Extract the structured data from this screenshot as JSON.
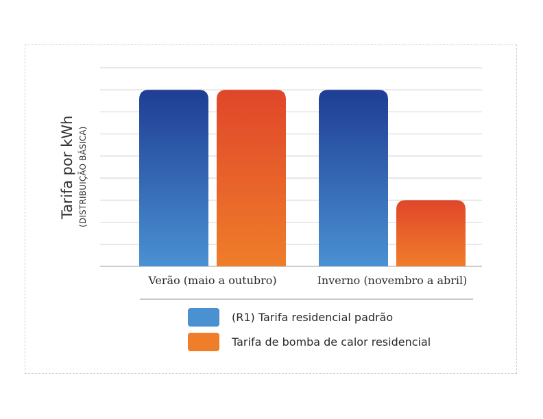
{
  "chart_data": {
    "type": "bar",
    "title": "",
    "ylabel": "Tarifa por kWh",
    "ylabel_sub": "(DISTRIBUIÇÃO BÁSICA)",
    "xlabel": "",
    "categories": [
      "Verão (maio a outubro)",
      "Inverno (novembro a abril)"
    ],
    "series": [
      {
        "name": "(R1) Tarifa residencial padrão",
        "values": [
          8,
          8
        ],
        "color_top": "#1f3d94",
        "color_bottom": "#4a91d2"
      },
      {
        "name": "Tarifa de bomba de calor residencial",
        "values": [
          8,
          3
        ],
        "color_top": "#e0462a",
        "color_bottom": "#ef7d2a"
      }
    ],
    "ylim": [
      0,
      9
    ],
    "grid": true,
    "y_tick_labels": false,
    "legend_position": "bottom",
    "colors": {
      "grid": "#d9d9d9",
      "axis": "#bdbdbd",
      "frame": "#cfcfcf"
    }
  }
}
